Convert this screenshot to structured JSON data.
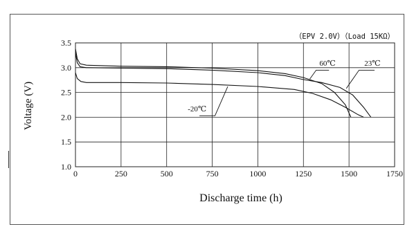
{
  "chart_data": {
    "type": "line",
    "annotation": "（EPV 2.0V）（Load 15KΩ）",
    "xlabel": "Discharge time (h)",
    "ylabel": "Voltage (V)",
    "xlim": [
      0,
      1750
    ],
    "ylim": [
      1.0,
      3.5
    ],
    "x_ticks": [
      "0",
      "250",
      "500",
      "750",
      "1000",
      "1250",
      "1500",
      "1750"
    ],
    "y_ticks": [
      "1.0",
      "1.5",
      "2.0",
      "2.5",
      "3.0",
      "3.5"
    ],
    "grid": true,
    "series": [
      {
        "name": "60℃",
        "points": [
          [
            0,
            3.38
          ],
          [
            10,
            3.18
          ],
          [
            25,
            3.08
          ],
          [
            60,
            3.05
          ],
          [
            250,
            3.03
          ],
          [
            500,
            3.02
          ],
          [
            750,
            2.99
          ],
          [
            1000,
            2.94
          ],
          [
            1150,
            2.88
          ],
          [
            1250,
            2.8
          ],
          [
            1350,
            2.68
          ],
          [
            1420,
            2.5
          ],
          [
            1480,
            2.25
          ],
          [
            1510,
            2.0
          ]
        ]
      },
      {
        "name": "23℃",
        "points": [
          [
            0,
            3.3
          ],
          [
            10,
            3.1
          ],
          [
            25,
            3.02
          ],
          [
            60,
            3.0
          ],
          [
            250,
            2.99
          ],
          [
            500,
            2.98
          ],
          [
            750,
            2.95
          ],
          [
            1000,
            2.9
          ],
          [
            1150,
            2.84
          ],
          [
            1250,
            2.76
          ],
          [
            1350,
            2.7
          ],
          [
            1450,
            2.6
          ],
          [
            1520,
            2.45
          ],
          [
            1580,
            2.2
          ],
          [
            1620,
            2.0
          ]
        ]
      },
      {
        "name": "-20℃",
        "points": [
          [
            0,
            2.9
          ],
          [
            10,
            2.78
          ],
          [
            30,
            2.72
          ],
          [
            60,
            2.7
          ],
          [
            250,
            2.7
          ],
          [
            500,
            2.69
          ],
          [
            750,
            2.66
          ],
          [
            1000,
            2.62
          ],
          [
            1200,
            2.56
          ],
          [
            1300,
            2.48
          ],
          [
            1400,
            2.35
          ],
          [
            1480,
            2.2
          ],
          [
            1550,
            2.05
          ],
          [
            1580,
            2.0
          ]
        ]
      }
    ],
    "labels": [
      {
        "text": "60℃",
        "tip": [
          1285,
          2.77
        ],
        "bend": [
          1320,
          2.95
        ],
        "end": [
          1390,
          2.95
        ],
        "tx": 1382,
        "ty": 3.04
      },
      {
        "text": "23℃",
        "tip": [
          1485,
          2.58
        ],
        "bend": [
          1555,
          2.95
        ],
        "end": [
          1640,
          2.95
        ],
        "tx": 1628,
        "ty": 3.04
      },
      {
        "text": "-20℃",
        "tip": [
          835,
          2.62
        ],
        "bend": [
          765,
          2.03
        ],
        "end": [
          680,
          2.03
        ],
        "tx": 667,
        "ty": 2.12
      }
    ]
  }
}
